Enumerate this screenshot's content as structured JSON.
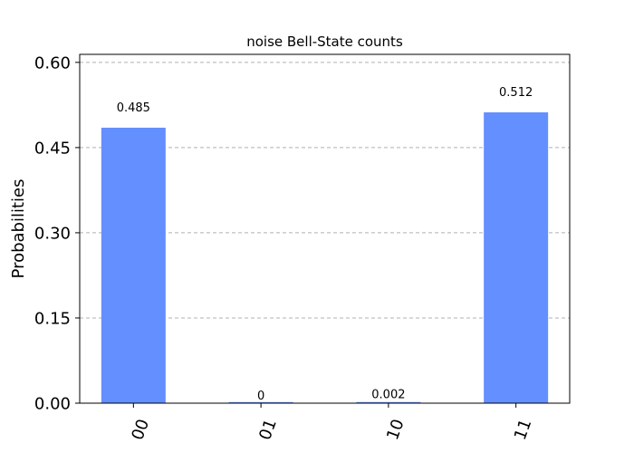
{
  "chart_data": {
    "type": "bar",
    "title": "noise Bell-State counts",
    "xlabel": "",
    "ylabel": "Probabilities",
    "categories": [
      "00",
      "01",
      "10",
      "11"
    ],
    "values": [
      0.485,
      0,
      0.002,
      0.512
    ],
    "value_labels": [
      "0.485",
      "0",
      "0.002",
      "0.512"
    ],
    "yticks": [
      0.0,
      0.15,
      0.3,
      0.45,
      0.6
    ],
    "ytick_labels": [
      "0.00",
      "0.15",
      "0.30",
      "0.45",
      "0.60"
    ],
    "ylim": [
      0,
      0.6141
    ],
    "grid": true,
    "bar_color": "#648fff"
  }
}
